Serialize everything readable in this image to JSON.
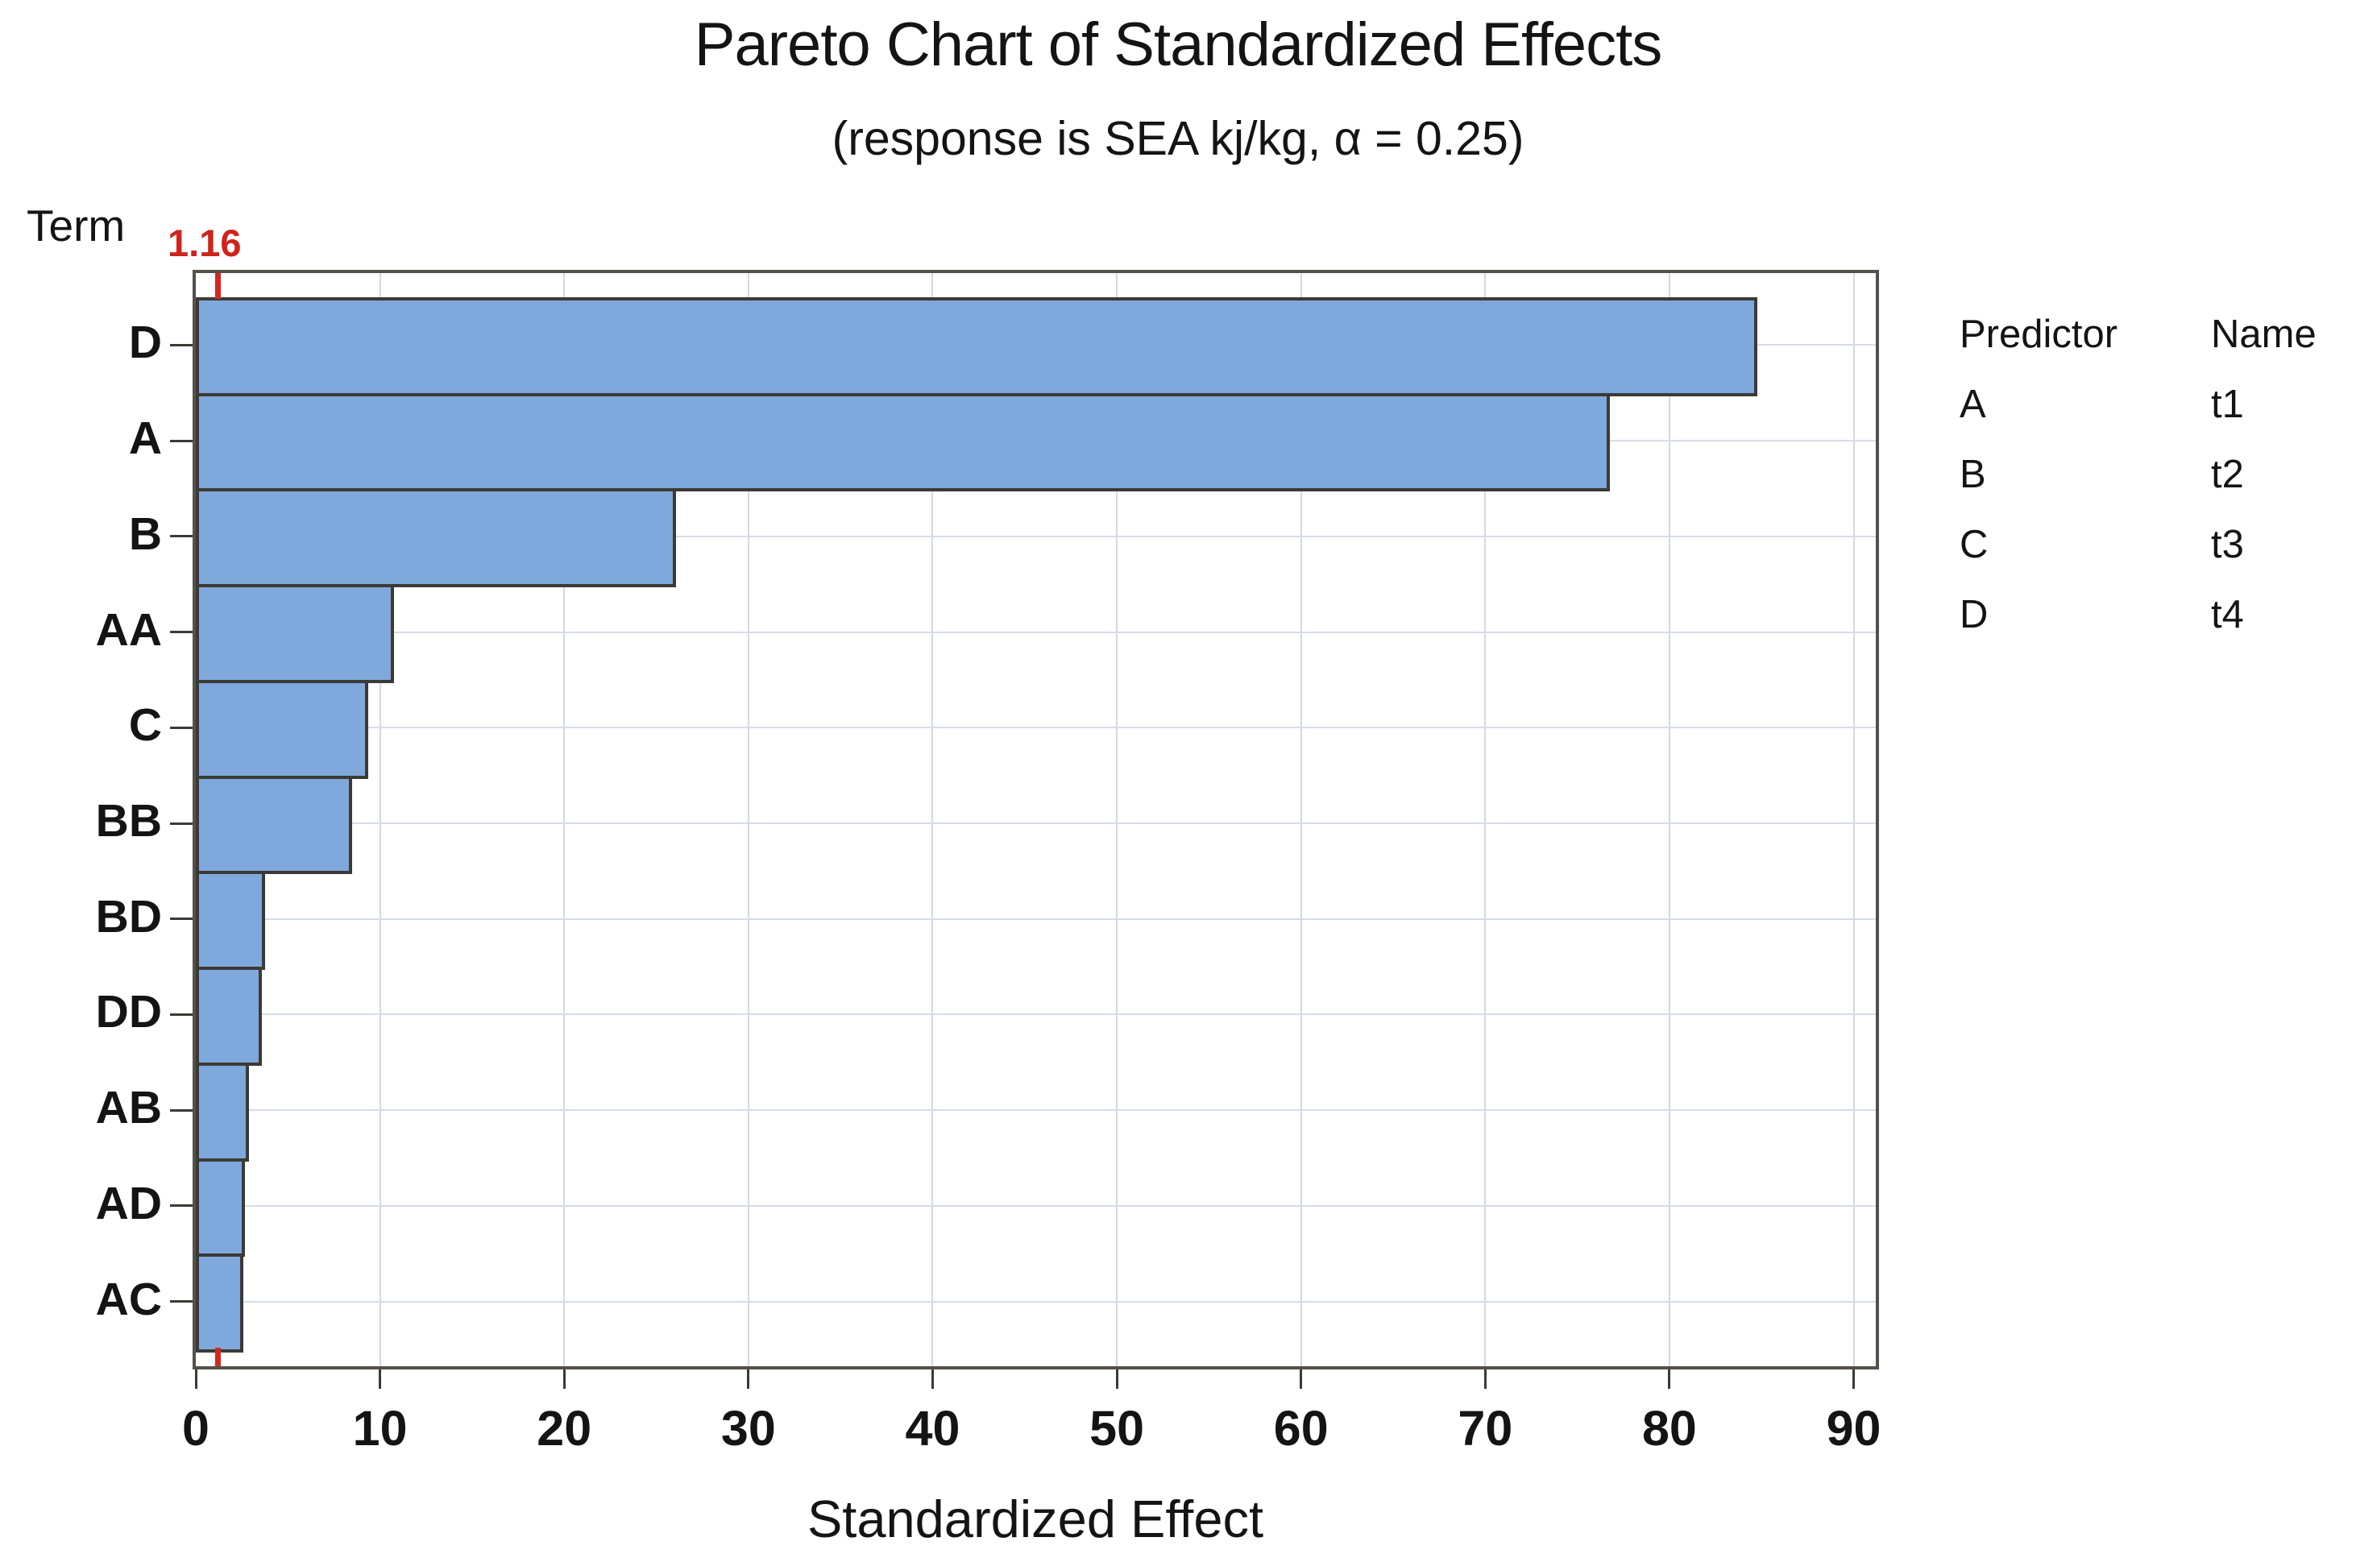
{
  "title": "Pareto Chart of Standardized Effects",
  "subtitle": "(response is SEA kj/kg, α = 0.25)",
  "y_axis_title": "Term",
  "x_axis_label": "Standardized Effect",
  "reference_line": {
    "value": 1.16,
    "label": "1.16",
    "color": "#cf231c"
  },
  "colors": {
    "bar_fill": "#7fa8dc",
    "bar_border": "#3b3a35",
    "frame": "#56504a",
    "gridline": "#d4dae4",
    "reference": "#d3281e",
    "text": "#141414"
  },
  "chart_data": {
    "type": "bar",
    "orientation": "horizontal",
    "title": "Pareto Chart of Standardized Effects",
    "subtitle": "(response is SEA kj/kg, α = 0.25)",
    "xlabel": "Standardized Effect",
    "ylabel": "Term",
    "categories": [
      "D",
      "A",
      "B",
      "AA",
      "C",
      "BB",
      "BD",
      "DD",
      "AB",
      "AD",
      "AC"
    ],
    "values": [
      84.6,
      76.6,
      25.9,
      10.6,
      9.2,
      8.3,
      3.6,
      3.4,
      2.7,
      2.5,
      2.4
    ],
    "reference_value": 1.16,
    "xlim": [
      0,
      91.2
    ],
    "x_ticks": [
      0,
      10,
      20,
      30,
      40,
      50,
      60,
      70,
      80,
      90
    ],
    "grid": true,
    "legend_position": "right"
  },
  "legend_table": {
    "headers": [
      "Predictor",
      "Name"
    ],
    "rows": [
      {
        "predictor": "A",
        "name": "t1"
      },
      {
        "predictor": "B",
        "name": "t2"
      },
      {
        "predictor": "C",
        "name": "t3"
      },
      {
        "predictor": "D",
        "name": "t4"
      }
    ]
  }
}
